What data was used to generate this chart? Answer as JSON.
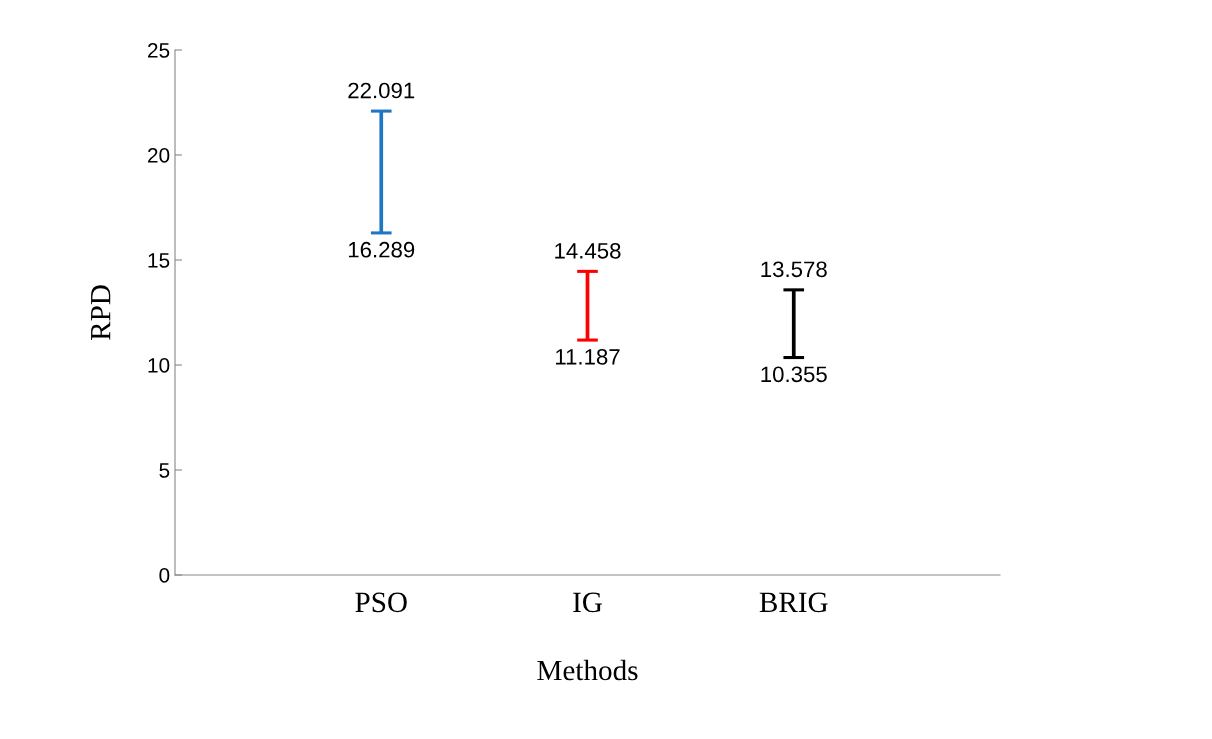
{
  "chart_data": {
    "type": "bar",
    "xlabel": "Methods",
    "ylabel": "RPD",
    "categories": [
      "PSO",
      "IG",
      "BRIG"
    ],
    "base": [
      16.289,
      11.187,
      10.355
    ],
    "values": [
      5.802,
      3.271,
      3.223
    ],
    "colors": [
      "#1f77c4",
      "#ff0000",
      "#000000"
    ],
    "ylim": [
      0,
      25
    ],
    "yticks": [
      0,
      5,
      10,
      15,
      20,
      25
    ],
    "grid": false,
    "annotations": [
      {
        "text": "22.091",
        "x": "PSO",
        "y": 22.091
      },
      {
        "text": "16.289",
        "x": "PSO",
        "y": 16.289
      },
      {
        "text": "14.458",
        "x": "IG",
        "y": 14.458
      },
      {
        "text": "11.187",
        "x": "IG",
        "y": 11.187
      },
      {
        "text": "13.578",
        "x": "BRIG",
        "y": 13.578
      },
      {
        "text": "10.355",
        "x": "BRIG",
        "y": 10.355
      }
    ]
  }
}
